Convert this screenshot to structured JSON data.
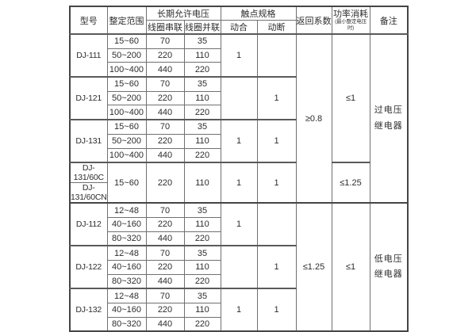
{
  "page": {
    "background": "#ffffff"
  },
  "colors": {
    "grid_line": "#707072",
    "outer_border": "#454547",
    "text": "#2d2d2f"
  },
  "table": {
    "header_rows": [
      {
        "cells": [
          {
            "t": "型号",
            "rs": 2,
            "name": "col-header-model"
          },
          {
            "t": "整定范围",
            "rs": 2,
            "name": "col-header-setting-range"
          },
          {
            "t": "长期允许电压",
            "cs": 2,
            "name": "col-header-long-term-allowable-voltage"
          },
          {
            "t": "触点规格",
            "cs": 2,
            "name": "col-header-contact-spec"
          },
          {
            "t": "返回系数",
            "rs": 2,
            "name": "col-header-return-coefficient"
          },
          {
            "t": "功率消耗",
            "sub": "(最小整定电压时)",
            "rs": 2,
            "name": "col-header-power-consumption"
          },
          {
            "t": "备注",
            "rs": 2,
            "name": "col-header-remarks"
          }
        ]
      },
      {
        "cells": [
          {
            "t": "线圈串联",
            "name": "col-header-coil-series"
          },
          {
            "t": "线圈并联",
            "name": "col-header-coil-parallel"
          },
          {
            "t": "动合",
            "name": "col-header-normally-open"
          },
          {
            "t": "动断",
            "name": "col-header-normally-closed"
          }
        ]
      }
    ],
    "body_rows": [
      {
        "group_start": true,
        "cells": [
          {
            "t": "DJ-111",
            "rs": 3,
            "name": "model-cell",
            "cls": "model"
          },
          {
            "t": "15~60",
            "name": "setting-range-cell"
          },
          {
            "t": "70",
            "name": "series-voltage-cell"
          },
          {
            "t": "35",
            "name": "parallel-voltage-cell"
          },
          {
            "t": "1",
            "rs": 3,
            "name": "no-contact-cell"
          },
          {
            "t": "",
            "rs": 3,
            "name": "nc-contact-cell"
          },
          {
            "t": "≥0.8",
            "rs": 11,
            "name": "return-coefficient-cell"
          },
          {
            "t": "≤1",
            "rs": 9,
            "name": "power-consumption-cell"
          },
          {
            "t": "过电压\n继电器",
            "rs": 11,
            "name": "remarks-cell",
            "cls": "remark"
          }
        ]
      },
      {
        "cells": [
          {
            "t": "50~200",
            "name": "setting-range-cell"
          },
          {
            "t": "220",
            "name": "series-voltage-cell"
          },
          {
            "t": "110",
            "name": "parallel-voltage-cell"
          }
        ]
      },
      {
        "cells": [
          {
            "t": "100~400",
            "name": "setting-range-cell"
          },
          {
            "t": "440",
            "name": "series-voltage-cell"
          },
          {
            "t": "220",
            "name": "parallel-voltage-cell"
          }
        ]
      },
      {
        "group_start": true,
        "cells": [
          {
            "t": "DJ-121",
            "rs": 3,
            "name": "model-cell",
            "cls": "model"
          },
          {
            "t": "15~60",
            "name": "setting-range-cell"
          },
          {
            "t": "70",
            "name": "series-voltage-cell"
          },
          {
            "t": "35",
            "name": "parallel-voltage-cell"
          },
          {
            "t": "",
            "rs": 3,
            "name": "no-contact-cell"
          },
          {
            "t": "1",
            "rs": 3,
            "name": "nc-contact-cell"
          }
        ]
      },
      {
        "cells": [
          {
            "t": "50~200",
            "name": "setting-range-cell"
          },
          {
            "t": "220",
            "name": "series-voltage-cell"
          },
          {
            "t": "110",
            "name": "parallel-voltage-cell"
          }
        ]
      },
      {
        "cells": [
          {
            "t": "100~400",
            "name": "setting-range-cell"
          },
          {
            "t": "440",
            "name": "series-voltage-cell"
          },
          {
            "t": "220",
            "name": "parallel-voltage-cell"
          }
        ]
      },
      {
        "group_start": true,
        "cells": [
          {
            "t": "DJ-131",
            "rs": 3,
            "name": "model-cell",
            "cls": "model"
          },
          {
            "t": "15~60",
            "name": "setting-range-cell"
          },
          {
            "t": "70",
            "name": "series-voltage-cell"
          },
          {
            "t": "35",
            "name": "parallel-voltage-cell"
          },
          {
            "t": "1",
            "rs": 3,
            "name": "no-contact-cell"
          },
          {
            "t": "1",
            "rs": 3,
            "name": "nc-contact-cell"
          }
        ]
      },
      {
        "cells": [
          {
            "t": "50~200",
            "name": "setting-range-cell"
          },
          {
            "t": "220",
            "name": "series-voltage-cell"
          },
          {
            "t": "110",
            "name": "parallel-voltage-cell"
          }
        ]
      },
      {
        "cells": [
          {
            "t": "100~400",
            "name": "setting-range-cell"
          },
          {
            "t": "440",
            "name": "series-voltage-cell"
          },
          {
            "t": "220",
            "name": "parallel-voltage-cell"
          }
        ]
      },
      {
        "group_start": true,
        "cells": [
          {
            "t": "DJ-131/60C",
            "name": "model-cell",
            "cls": "model"
          },
          {
            "t": "15~60",
            "rs": 2,
            "name": "setting-range-cell"
          },
          {
            "t": "220",
            "rs": 2,
            "name": "series-voltage-cell"
          },
          {
            "t": "110",
            "rs": 2,
            "name": "parallel-voltage-cell"
          },
          {
            "t": "1",
            "rs": 2,
            "name": "no-contact-cell"
          },
          {
            "t": "1",
            "rs": 2,
            "name": "nc-contact-cell"
          },
          {
            "t": "≤1.25",
            "rs": 2,
            "name": "power-consumption-cell"
          }
        ]
      },
      {
        "cells": [
          {
            "t": "DJ-131/60CN",
            "name": "model-cell",
            "cls": "model"
          }
        ]
      },
      {
        "section_start": true,
        "group_start": true,
        "cells": [
          {
            "t": "DJ-112",
            "rs": 3,
            "name": "model-cell",
            "cls": "model"
          },
          {
            "t": "12~48",
            "name": "setting-range-cell"
          },
          {
            "t": "70",
            "name": "series-voltage-cell"
          },
          {
            "t": "35",
            "name": "parallel-voltage-cell"
          },
          {
            "t": "1",
            "rs": 3,
            "name": "no-contact-cell"
          },
          {
            "t": "",
            "rs": 3,
            "name": "nc-contact-cell"
          },
          {
            "t": "≤1.25",
            "rs": 9,
            "name": "return-coefficient-cell"
          },
          {
            "t": "≤1",
            "rs": 9,
            "name": "power-consumption-cell"
          },
          {
            "t": "低电压\n继电器",
            "rs": 9,
            "name": "remarks-cell",
            "cls": "remark"
          }
        ]
      },
      {
        "cells": [
          {
            "t": "40~160",
            "name": "setting-range-cell"
          },
          {
            "t": "220",
            "name": "series-voltage-cell"
          },
          {
            "t": "110",
            "name": "parallel-voltage-cell"
          }
        ]
      },
      {
        "cells": [
          {
            "t": "80~320",
            "name": "setting-range-cell"
          },
          {
            "t": "440",
            "name": "series-voltage-cell"
          },
          {
            "t": "220",
            "name": "parallel-voltage-cell"
          }
        ]
      },
      {
        "group_start": true,
        "cells": [
          {
            "t": "DJ-122",
            "rs": 3,
            "name": "model-cell",
            "cls": "model"
          },
          {
            "t": "12~48",
            "name": "setting-range-cell"
          },
          {
            "t": "70",
            "name": "series-voltage-cell"
          },
          {
            "t": "35",
            "name": "parallel-voltage-cell"
          },
          {
            "t": "",
            "rs": 3,
            "name": "no-contact-cell"
          },
          {
            "t": "1",
            "rs": 3,
            "name": "nc-contact-cell"
          }
        ]
      },
      {
        "cells": [
          {
            "t": "40~160",
            "name": "setting-range-cell"
          },
          {
            "t": "220",
            "name": "series-voltage-cell"
          },
          {
            "t": "110",
            "name": "parallel-voltage-cell"
          }
        ]
      },
      {
        "cells": [
          {
            "t": "80~320",
            "name": "setting-range-cell"
          },
          {
            "t": "440",
            "name": "series-voltage-cell"
          },
          {
            "t": "220",
            "name": "parallel-voltage-cell"
          }
        ]
      },
      {
        "group_start": true,
        "cells": [
          {
            "t": "DJ-132",
            "rs": 3,
            "name": "model-cell",
            "cls": "model"
          },
          {
            "t": "12~48",
            "name": "setting-range-cell"
          },
          {
            "t": "70",
            "name": "series-voltage-cell"
          },
          {
            "t": "35",
            "name": "parallel-voltage-cell"
          },
          {
            "t": "1",
            "rs": 3,
            "name": "no-contact-cell"
          },
          {
            "t": "1",
            "rs": 3,
            "name": "nc-contact-cell"
          }
        ]
      },
      {
        "cells": [
          {
            "t": "40~160",
            "name": "setting-range-cell"
          },
          {
            "t": "220",
            "name": "series-voltage-cell"
          },
          {
            "t": "110",
            "name": "parallel-voltage-cell"
          }
        ]
      },
      {
        "cells": [
          {
            "t": "80~320",
            "name": "setting-range-cell"
          },
          {
            "t": "440",
            "name": "series-voltage-cell"
          },
          {
            "t": "220",
            "name": "parallel-voltage-cell"
          }
        ]
      }
    ]
  }
}
